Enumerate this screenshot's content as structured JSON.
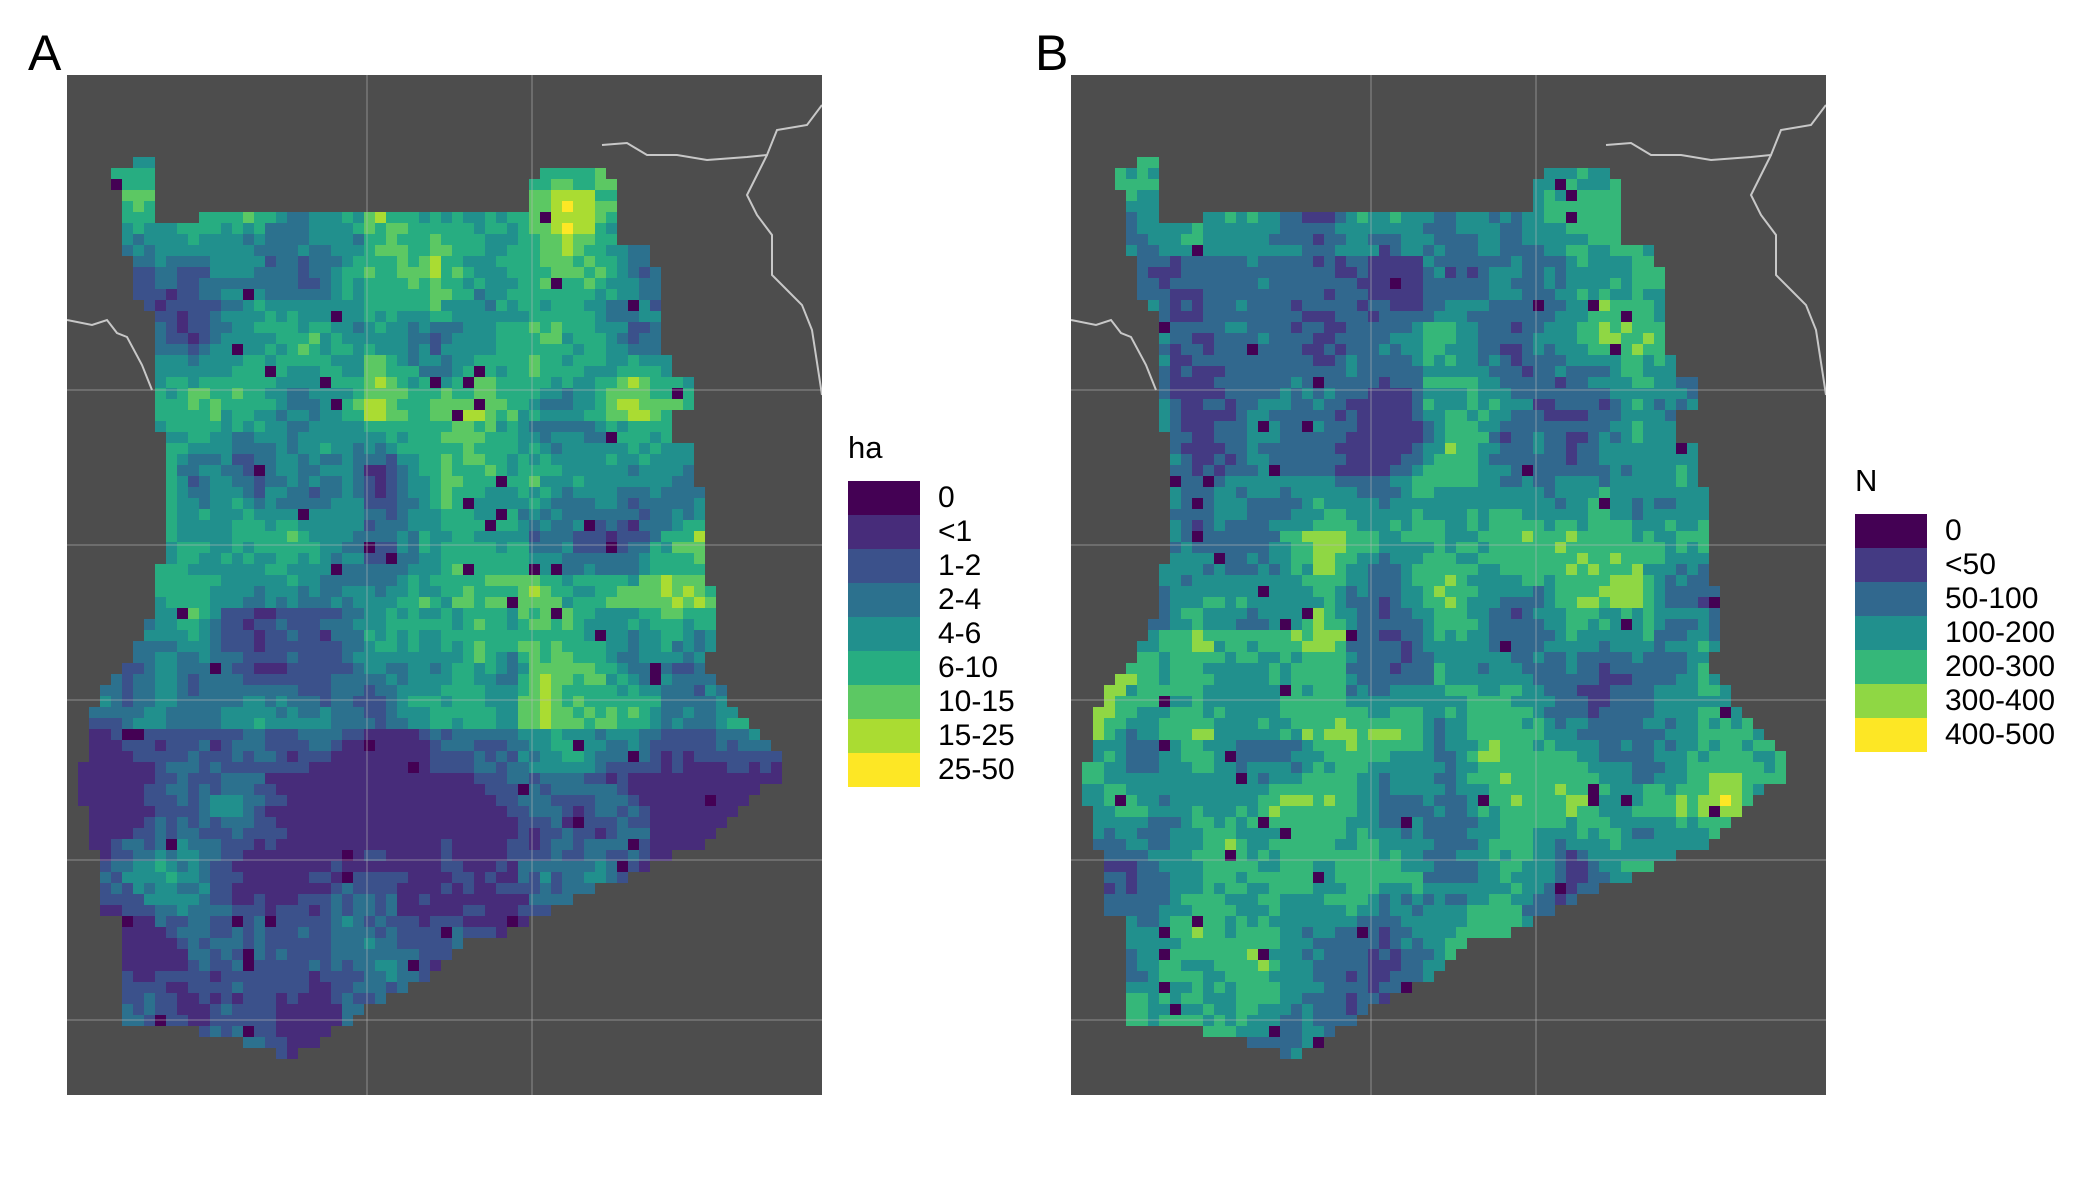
{
  "panels": [
    {
      "letter": "A",
      "legend": {
        "title": "ha",
        "items": [
          {
            "label": "0",
            "color": "#440154"
          },
          {
            "label": "<1",
            "color": "#472c7a"
          },
          {
            "label": "1-2",
            "color": "#3b518b"
          },
          {
            "label": "2-4",
            "color": "#2c718e"
          },
          {
            "label": "4-6",
            "color": "#21908d"
          },
          {
            "label": "6-10",
            "color": "#27ad81"
          },
          {
            "label": "10-15",
            "color": "#5cc863"
          },
          {
            "label": "15-25",
            "color": "#aadc32"
          },
          {
            "label": "25-50",
            "color": "#fde725"
          }
        ]
      }
    },
    {
      "letter": "B",
      "legend": {
        "title": "N",
        "items": [
          {
            "label": "0",
            "color": "#440154"
          },
          {
            "label": "<50",
            "color": "#443a83"
          },
          {
            "label": "50-100",
            "color": "#31688e"
          },
          {
            "label": "100-200",
            "color": "#21908d"
          },
          {
            "label": "200-300",
            "color": "#35b779"
          },
          {
            "label": "300-400",
            "color": "#8fd744"
          },
          {
            "label": "400-500",
            "color": "#fde725"
          }
        ]
      }
    }
  ],
  "colors": {
    "background_land": "#4d4d4d",
    "border_line": "#c8c8c8",
    "grid_line": "#b8b8b8"
  }
}
